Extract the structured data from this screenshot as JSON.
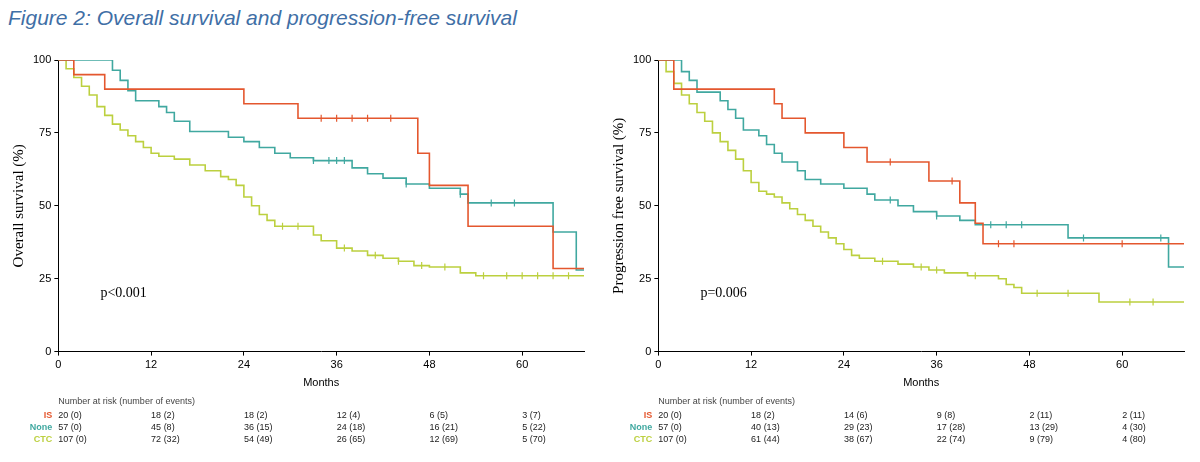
{
  "title": "Figure 2: Overall survival and progression-free survival",
  "chart_data": [
    {
      "type": "step",
      "y_label": "Overall survival (%)",
      "x_label": "Months",
      "xlim": [
        0,
        68
      ],
      "xticks": [
        0,
        12,
        24,
        36,
        48,
        60
      ],
      "ylim": [
        0,
        100
      ],
      "yticks": [
        0,
        25,
        50,
        75,
        100
      ],
      "grid": false,
      "annotations": [
        "p<0.001"
      ],
      "risk_table": {
        "title": "Number at risk (number of events)",
        "x": [
          0,
          12,
          24,
          36,
          48,
          60
        ]
      },
      "series": [
        {
          "name": "IS",
          "color": "#e4572e",
          "marker": "tick",
          "x": [
            0,
            2,
            6,
            24,
            31,
            46.5,
            48,
            53,
            64,
            68
          ],
          "values": [
            100,
            95,
            90,
            85,
            80,
            68,
            57,
            43,
            28.5,
            28.5
          ],
          "censored": [
            34,
            36,
            38,
            40,
            43
          ],
          "at_risk": [
            "20 (0)",
            "18 (2)",
            "18 (2)",
            "12 (4)",
            "6 (5)",
            "3 (7)"
          ]
        },
        {
          "name": "None",
          "color": "#40a8a0",
          "marker": "tick",
          "x": [
            0,
            7,
            8,
            9,
            10,
            13,
            14,
            15,
            17,
            22,
            24,
            26,
            28,
            30,
            33,
            38,
            40,
            42,
            45,
            48,
            52,
            53,
            64,
            67,
            68
          ],
          "values": [
            100,
            96.5,
            93,
            89.5,
            86,
            84,
            82,
            79,
            75.5,
            73.5,
            72,
            70,
            68,
            66.5,
            65.5,
            63,
            61,
            59.5,
            57.5,
            56,
            54,
            51,
            41,
            28,
            28
          ],
          "censored": [
            33,
            35,
            36,
            37,
            45,
            52,
            56,
            59
          ],
          "at_risk": [
            "57 (0)",
            "45 (8)",
            "36 (15)",
            "24 (18)",
            "16 (21)",
            "5 (22)"
          ]
        },
        {
          "name": "CTC",
          "color": "#bcd03f",
          "marker": "tick",
          "x": [
            0,
            1,
            2,
            3,
            4,
            5,
            6,
            7,
            8,
            9,
            10,
            11,
            12,
            13,
            15,
            17,
            19,
            21,
            22,
            23,
            24,
            25,
            26,
            27,
            28,
            33,
            34,
            36,
            38,
            40,
            42,
            44,
            46,
            48,
            52,
            54,
            68
          ],
          "values": [
            100,
            97,
            94,
            91,
            88,
            84,
            81,
            78,
            76,
            74,
            72,
            70,
            68,
            67,
            66,
            64,
            62,
            60,
            59,
            57,
            53,
            50,
            47,
            45,
            43,
            40,
            38,
            35.5,
            34.5,
            33,
            32,
            31,
            29.5,
            29,
            27,
            26,
            26
          ],
          "censored": [
            29,
            31,
            37,
            41,
            44,
            47,
            50,
            55,
            58,
            60,
            62,
            64,
            66
          ],
          "at_risk": [
            "107 (0)",
            "72 (32)",
            "54 (49)",
            "26 (65)",
            "12 (69)",
            "5 (70)"
          ]
        }
      ]
    },
    {
      "type": "step",
      "y_label": "Progression free survival (%)",
      "x_label": "Months",
      "xlim": [
        0,
        68
      ],
      "xticks": [
        0,
        12,
        24,
        36,
        48,
        60
      ],
      "ylim": [
        0,
        100
      ],
      "yticks": [
        0,
        25,
        50,
        75,
        100
      ],
      "grid": false,
      "annotations": [
        "p=0.006"
      ],
      "risk_table": {
        "title": "Number at risk (number of events)",
        "x": [
          0,
          12,
          24,
          36,
          48,
          60
        ]
      },
      "series": [
        {
          "name": "IS",
          "color": "#e4572e",
          "marker": "tick",
          "x": [
            0,
            2,
            15,
            16,
            19,
            24,
            27,
            35,
            39,
            41,
            42,
            68
          ],
          "values": [
            100,
            90,
            85,
            80,
            75,
            70,
            65,
            58.5,
            51,
            44,
            37,
            37
          ],
          "censored": [
            30,
            38,
            44,
            46,
            60
          ],
          "at_risk": [
            "20 (0)",
            "18 (2)",
            "14 (6)",
            "9 (8)",
            "2 (11)",
            "2 (11)"
          ]
        },
        {
          "name": "None",
          "color": "#40a8a0",
          "marker": "tick",
          "x": [
            0,
            3,
            4,
            5,
            8,
            9,
            10,
            11,
            13,
            14,
            15,
            16,
            18,
            19,
            21,
            24,
            27,
            28,
            31,
            33,
            36,
            39,
            41,
            53,
            66,
            68
          ],
          "values": [
            100,
            96,
            93,
            89,
            86,
            83,
            80,
            76,
            74,
            71,
            68,
            65,
            62,
            59,
            57.5,
            56,
            54,
            52,
            50,
            48,
            46.5,
            45,
            43.5,
            39,
            29,
            29
          ],
          "censored": [
            30,
            36,
            43,
            45,
            47,
            55,
            65
          ],
          "at_risk": [
            "57 (0)",
            "40 (13)",
            "29 (23)",
            "17 (28)",
            "13 (29)",
            "4 (30)"
          ]
        },
        {
          "name": "CTC",
          "color": "#bcd03f",
          "marker": "tick",
          "x": [
            0,
            1,
            2,
            3,
            4,
            5,
            6,
            7,
            8,
            9,
            10,
            11,
            12,
            13,
            14,
            15,
            16,
            17,
            18,
            19,
            20,
            21,
            22,
            23,
            24,
            25,
            26,
            28,
            31,
            33,
            35,
            37,
            40,
            44,
            45,
            46,
            47,
            57,
            68
          ],
          "values": [
            100,
            96,
            92,
            88,
            85,
            82,
            79,
            75,
            72,
            69,
            66,
            62,
            58,
            55,
            54,
            53,
            51,
            49,
            47,
            45,
            43,
            41,
            39,
            37,
            35,
            33,
            32,
            31,
            30,
            29,
            28,
            27,
            26,
            25,
            23,
            22,
            20,
            17,
            17
          ],
          "censored": [
            29,
            34,
            36,
            41,
            49,
            53,
            61,
            64
          ],
          "at_risk": [
            "107 (0)",
            "61 (44)",
            "38 (67)",
            "22 (74)",
            "9 (79)",
            "4 (80)"
          ]
        }
      ]
    }
  ]
}
